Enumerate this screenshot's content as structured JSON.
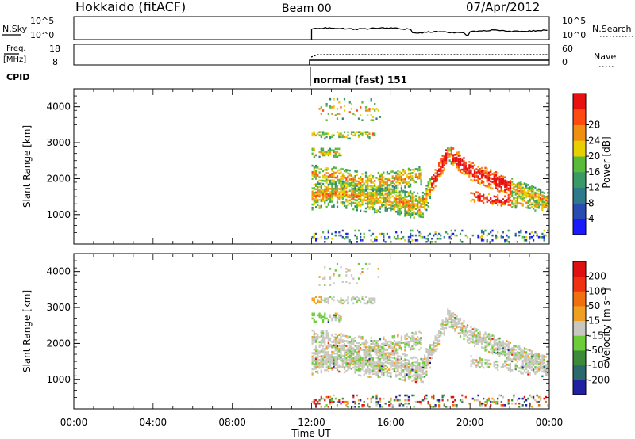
{
  "header": {
    "station": "Hokkaido (fitACF)",
    "beam": "Beam 00",
    "date": "07/Apr/2012"
  },
  "strip_labels": {
    "nsky": "N.Sky",
    "freq_top": "Freq.",
    "freq_unit": "[MHz]",
    "cpid": "CPID",
    "nsearch": "N.Search",
    "nave": "Nave",
    "nsky_ticks": [
      "10^5",
      "10^0"
    ],
    "freq_ticks": [
      "18",
      "8"
    ],
    "nave_ticks": [
      "60",
      "0"
    ],
    "cpid_value": "normal (fast) 151"
  },
  "chart_data": [
    {
      "type": "heatmap",
      "name": "power",
      "ylabel": "Slant Range [km]",
      "ylim": [
        180,
        4500
      ],
      "yticks": [
        "1000",
        "2000",
        "3000",
        "4000"
      ],
      "colorbar_label": "Power [dB]",
      "colorbar_ticks": [
        "4",
        "8",
        "12",
        "16",
        "20",
        "24",
        "28"
      ],
      "colors": [
        "#1a1aff",
        "#2a4cb0",
        "#2f7a8a",
        "#3a9a66",
        "#58bb3a",
        "#e8d000",
        "#f09010",
        "#ff4a10",
        "#e81010"
      ],
      "data_start_ut": "12:00"
    },
    {
      "type": "heatmap",
      "name": "velocity",
      "ylabel": "Slant Range [km]",
      "ylim": [
        180,
        4500
      ],
      "yticks": [
        "1000",
        "2000",
        "3000",
        "4000"
      ],
      "colorbar_label": "Velocity [m s⁻¹]",
      "colorbar_ticks": [
        "200",
        "100",
        "50",
        "15",
        "-15",
        "-50",
        "-100",
        "-200"
      ],
      "colors": [
        "#2020a0",
        "#2a6a6a",
        "#3a8a3a",
        "#6ccc3a",
        "#c8c8c0",
        "#f0a020",
        "#f07010",
        "#f03010",
        "#e01010"
      ],
      "data_start_ut": "12:00"
    }
  ],
  "x_axis": {
    "label": "Time UT",
    "ticks": [
      "00:00",
      "04:00",
      "08:00",
      "12:00",
      "16:00",
      "20:00",
      "00:00"
    ]
  }
}
